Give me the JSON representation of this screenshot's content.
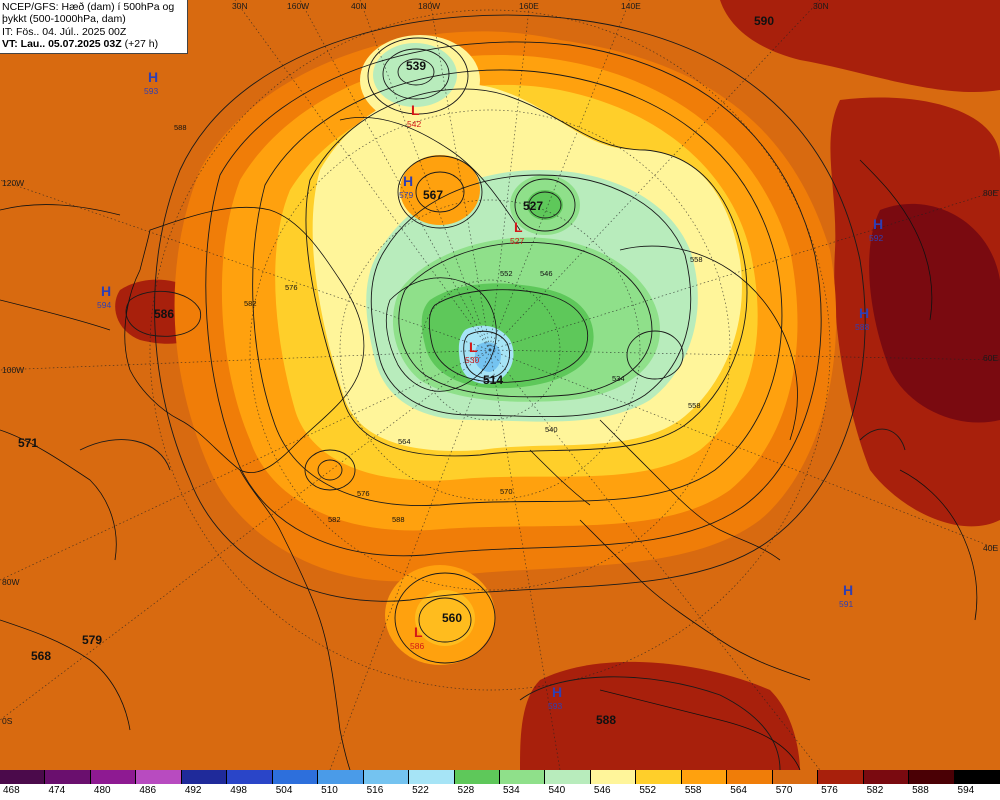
{
  "header": {
    "line1": "NCEP/GFS: Hæð (dam) í 500hPa og",
    "line2": "þykkt (500-1000hPa, dam)",
    "line3": "IT: Fös.. 04. Júl.. 2025 00Z",
    "valid_time": "VT: Lau.. 05.07.2025 03Z",
    "forecast_hour": " (+27 h)"
  },
  "map": {
    "projection": "polar-stereographic",
    "longitude_labels": [
      "30N",
      "160W",
      "40N",
      "180W",
      "160E",
      "140E",
      "30N",
      "120W",
      "100W",
      "80W",
      "0S",
      "80E",
      "60E",
      "40E"
    ],
    "pressure_centers": [
      {
        "type": "H",
        "value": "593",
        "color": "#2f3fb4"
      },
      {
        "type": "L",
        "value": "542",
        "color": "#d31818"
      },
      {
        "type": "H",
        "value": "579",
        "color": "#2f3fb4"
      },
      {
        "type": "L",
        "value": "527",
        "color": "#d31818"
      },
      {
        "type": "H",
        "value": "594",
        "color": "#2f3fb4"
      },
      {
        "type": "H",
        "value": "592",
        "color": "#2f3fb4"
      },
      {
        "type": "H",
        "value": "588",
        "color": "#2f3fb4"
      },
      {
        "type": "L",
        "value": "530",
        "color": "#d31818"
      },
      {
        "type": "H",
        "value": "591",
        "color": "#2f3fb4"
      },
      {
        "type": "L",
        "value": "586",
        "color": "#d31818"
      },
      {
        "type": "H",
        "value": "593",
        "color": "#2f3fb4"
      }
    ],
    "center_values": [
      "539",
      "567",
      "527",
      "586",
      "514",
      "571",
      "560",
      "579",
      "568",
      "588",
      "590"
    ],
    "contour_labels": [
      "588",
      "576",
      "582",
      "564",
      "558",
      "552",
      "546",
      "540",
      "534",
      "570"
    ]
  },
  "colorbar": {
    "levels": [
      "468",
      "474",
      "480",
      "486",
      "492",
      "498",
      "504",
      "510",
      "516",
      "522",
      "528",
      "534",
      "540",
      "546",
      "552",
      "558",
      "564",
      "570",
      "576",
      "582",
      "588",
      "594"
    ],
    "colors": [
      "#4b0a4b",
      "#6a0f6e",
      "#8e1a92",
      "#b84bc0",
      "#1f2a9a",
      "#2a45c8",
      "#2d6fdc",
      "#4a9be8",
      "#74c3f0",
      "#a6e4f6",
      "#5ec85a",
      "#8fe08a",
      "#b8ecbc",
      "#fff59a",
      "#ffcf2a",
      "#ffa10e",
      "#f07d08",
      "#d86a10",
      "#a8200c",
      "#7a0a10",
      "#4a0005",
      "#000000"
    ]
  }
}
